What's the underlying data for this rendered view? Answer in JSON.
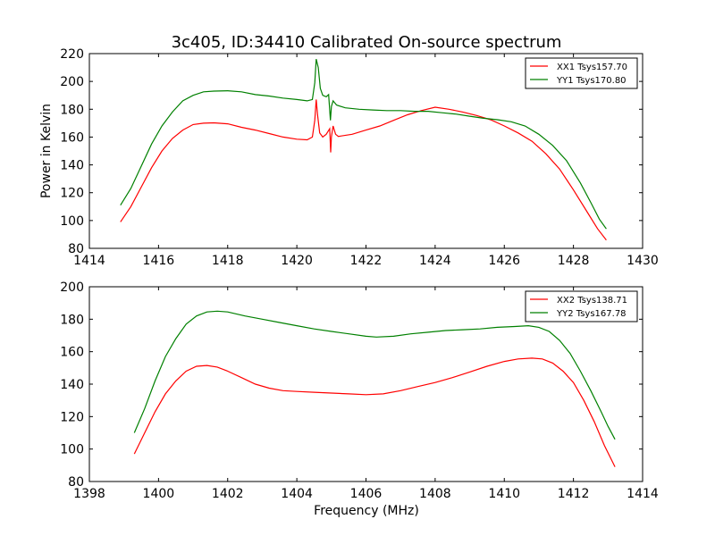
{
  "chart_data": [
    {
      "type": "line",
      "title": "3c405, ID:34410 Calibrated On-source spectrum",
      "xlabel": "",
      "ylabel": "Power in Kelvin",
      "xlim": [
        1414,
        1430
      ],
      "ylim": [
        80,
        220
      ],
      "xticks": [
        1414,
        1416,
        1418,
        1420,
        1422,
        1424,
        1426,
        1428,
        1430
      ],
      "yticks": [
        80,
        100,
        120,
        140,
        160,
        180,
        200,
        220
      ],
      "grid": false,
      "legend_position": "top-right",
      "series": [
        {
          "name": "XX1 Tsys157.70",
          "color": "#ff0000",
          "points": [
            [
              1414.9,
              99
            ],
            [
              1415.2,
              110
            ],
            [
              1415.5,
              124
            ],
            [
              1415.8,
              138
            ],
            [
              1416.1,
              150
            ],
            [
              1416.4,
              159
            ],
            [
              1416.7,
              165
            ],
            [
              1417.0,
              169
            ],
            [
              1417.3,
              170
            ],
            [
              1417.6,
              170.2
            ],
            [
              1418.0,
              169.5
            ],
            [
              1418.4,
              167
            ],
            [
              1418.8,
              165
            ],
            [
              1419.2,
              162.5
            ],
            [
              1419.6,
              160
            ],
            [
              1420.0,
              158.5
            ],
            [
              1420.3,
              158
            ],
            [
              1420.45,
              160
            ],
            [
              1420.52,
              172
            ],
            [
              1420.56,
              187
            ],
            [
              1420.6,
              176
            ],
            [
              1420.66,
              163
            ],
            [
              1420.75,
              160
            ],
            [
              1420.85,
              162
            ],
            [
              1420.95,
              166
            ],
            [
              1420.98,
              149
            ],
            [
              1421.0,
              160
            ],
            [
              1421.05,
              168
            ],
            [
              1421.12,
              162
            ],
            [
              1421.2,
              160.5
            ],
            [
              1421.6,
              162
            ],
            [
              1422.0,
              165
            ],
            [
              1422.4,
              168
            ],
            [
              1422.8,
              172
            ],
            [
              1423.2,
              176
            ],
            [
              1423.6,
              179
            ],
            [
              1424.0,
              181.5
            ],
            [
              1424.4,
              180
            ],
            [
              1424.8,
              178
            ],
            [
              1425.2,
              175.5
            ],
            [
              1425.6,
              172.5
            ],
            [
              1426.0,
              168
            ],
            [
              1426.4,
              163
            ],
            [
              1426.8,
              157
            ],
            [
              1427.2,
              148
            ],
            [
              1427.6,
              137
            ],
            [
              1428.0,
              122
            ],
            [
              1428.4,
              106
            ],
            [
              1428.7,
              94
            ],
            [
              1428.95,
              86
            ]
          ]
        },
        {
          "name": "YY1 Tsys170.80",
          "color": "#008000",
          "points": [
            [
              1414.9,
              111
            ],
            [
              1415.2,
              123
            ],
            [
              1415.5,
              139
            ],
            [
              1415.8,
              155
            ],
            [
              1416.1,
              168
            ],
            [
              1416.4,
              178
            ],
            [
              1416.7,
              186
            ],
            [
              1417.0,
              190
            ],
            [
              1417.3,
              192.5
            ],
            [
              1417.6,
              193
            ],
            [
              1418.0,
              193.3
            ],
            [
              1418.4,
              192.5
            ],
            [
              1418.8,
              190.5
            ],
            [
              1419.2,
              189.5
            ],
            [
              1419.6,
              188
            ],
            [
              1420.0,
              187
            ],
            [
              1420.3,
              186
            ],
            [
              1420.45,
              187
            ],
            [
              1420.52,
              199
            ],
            [
              1420.56,
              216
            ],
            [
              1420.62,
              210
            ],
            [
              1420.68,
              195
            ],
            [
              1420.75,
              190
            ],
            [
              1420.85,
              189
            ],
            [
              1420.92,
              190.5
            ],
            [
              1420.97,
              172
            ],
            [
              1421.0,
              182
            ],
            [
              1421.05,
              186
            ],
            [
              1421.15,
              183
            ],
            [
              1421.4,
              181
            ],
            [
              1421.8,
              180
            ],
            [
              1422.2,
              179.5
            ],
            [
              1422.6,
              179
            ],
            [
              1423.0,
              179
            ],
            [
              1423.4,
              178.5
            ],
            [
              1423.8,
              178.5
            ],
            [
              1424.2,
              177.5
            ],
            [
              1424.6,
              176.5
            ],
            [
              1425.0,
              175
            ],
            [
              1425.4,
              173.5
            ],
            [
              1425.8,
              172.5
            ],
            [
              1426.2,
              171
            ],
            [
              1426.6,
              168
            ],
            [
              1427.0,
              162
            ],
            [
              1427.4,
              154
            ],
            [
              1427.8,
              143
            ],
            [
              1428.2,
              127
            ],
            [
              1428.5,
              113
            ],
            [
              1428.75,
              101
            ],
            [
              1428.95,
              94
            ]
          ]
        }
      ]
    },
    {
      "type": "line",
      "title": "",
      "xlabel": "Frequency (MHz)",
      "ylabel": "",
      "xlim": [
        1398,
        1414
      ],
      "ylim": [
        80,
        200
      ],
      "xticks": [
        1398,
        1400,
        1402,
        1404,
        1406,
        1408,
        1410,
        1412,
        1414
      ],
      "yticks": [
        80,
        100,
        120,
        140,
        160,
        180,
        200
      ],
      "grid": false,
      "legend_position": "top-right",
      "series": [
        {
          "name": "XX2 Tsys138.71",
          "color": "#ff0000",
          "points": [
            [
              1399.3,
              97
            ],
            [
              1399.6,
              110
            ],
            [
              1399.9,
              123
            ],
            [
              1400.2,
              134
            ],
            [
              1400.5,
              142
            ],
            [
              1400.8,
              148
            ],
            [
              1401.1,
              151
            ],
            [
              1401.4,
              151.5
            ],
            [
              1401.7,
              150.5
            ],
            [
              1402.0,
              148
            ],
            [
              1402.4,
              144
            ],
            [
              1402.8,
              140
            ],
            [
              1403.2,
              137.5
            ],
            [
              1403.6,
              136
            ],
            [
              1404.0,
              135.5
            ],
            [
              1404.5,
              135
            ],
            [
              1405.0,
              134.5
            ],
            [
              1405.5,
              134
            ],
            [
              1406.0,
              133.5
            ],
            [
              1406.5,
              134
            ],
            [
              1407.0,
              136
            ],
            [
              1407.5,
              138.5
            ],
            [
              1408.0,
              141
            ],
            [
              1408.5,
              144
            ],
            [
              1409.0,
              147.5
            ],
            [
              1409.5,
              151
            ],
            [
              1410.0,
              154
            ],
            [
              1410.4,
              155.5
            ],
            [
              1410.8,
              156
            ],
            [
              1411.1,
              155.5
            ],
            [
              1411.4,
              153
            ],
            [
              1411.7,
              148
            ],
            [
              1412.0,
              141
            ],
            [
              1412.3,
              130
            ],
            [
              1412.6,
              117
            ],
            [
              1412.9,
              102
            ],
            [
              1413.2,
              89
            ]
          ]
        },
        {
          "name": "YY2 Tsys167.78",
          "color": "#008000",
          "points": [
            [
              1399.3,
              110
            ],
            [
              1399.6,
              125
            ],
            [
              1399.9,
              142
            ],
            [
              1400.2,
              157
            ],
            [
              1400.5,
              168
            ],
            [
              1400.8,
              177
            ],
            [
              1401.1,
              182
            ],
            [
              1401.4,
              184.5
            ],
            [
              1401.7,
              185
            ],
            [
              1402.0,
              184.5
            ],
            [
              1402.5,
              182
            ],
            [
              1403.0,
              180
            ],
            [
              1403.5,
              178
            ],
            [
              1404.0,
              176
            ],
            [
              1404.5,
              174
            ],
            [
              1405.0,
              172.5
            ],
            [
              1405.5,
              171
            ],
            [
              1406.0,
              169.5
            ],
            [
              1406.3,
              169
            ],
            [
              1406.8,
              169.5
            ],
            [
              1407.3,
              171
            ],
            [
              1407.8,
              172
            ],
            [
              1408.3,
              173
            ],
            [
              1408.8,
              173.5
            ],
            [
              1409.3,
              174
            ],
            [
              1409.8,
              175
            ],
            [
              1410.3,
              175.5
            ],
            [
              1410.7,
              176
            ],
            [
              1411.0,
              175
            ],
            [
              1411.3,
              172.5
            ],
            [
              1411.6,
              167
            ],
            [
              1411.9,
              159
            ],
            [
              1412.2,
              148
            ],
            [
              1412.5,
              136
            ],
            [
              1412.8,
              123
            ],
            [
              1413.0,
              114
            ],
            [
              1413.2,
              106
            ]
          ]
        }
      ]
    }
  ]
}
